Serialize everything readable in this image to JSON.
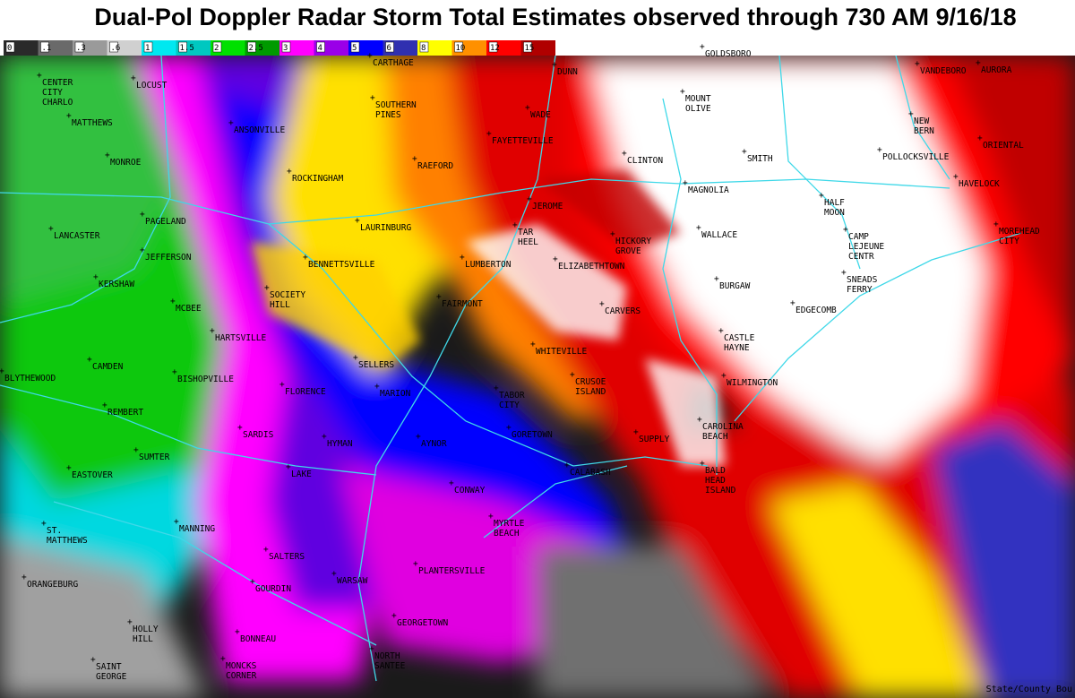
{
  "header": {
    "title": "Dual-Pol Doppler Radar Storm Total Estimates observed through 730 AM 9/16/18"
  },
  "legend": {
    "items": [
      {
        "label": "0",
        "color": "#2a2a2a"
      },
      {
        "label": ".1",
        "color": "#6a6a6a"
      },
      {
        "label": ".3",
        "color": "#9a9a9a"
      },
      {
        "label": ".6",
        "color": "#d0d0d0"
      },
      {
        "label": "1",
        "color": "#00e8f0"
      },
      {
        "label": "1.5",
        "color": "#00c8c0"
      },
      {
        "label": "2",
        "color": "#00e000"
      },
      {
        "label": "2.5",
        "color": "#009a00"
      },
      {
        "label": "3",
        "color": "#ff00ff"
      },
      {
        "label": "4",
        "color": "#9a00e8"
      },
      {
        "label": "5",
        "color": "#0000ff"
      },
      {
        "label": "6",
        "color": "#3030b0"
      },
      {
        "label": "8",
        "color": "#ffff00"
      },
      {
        "label": "10",
        "color": "#ff9000"
      },
      {
        "label": "12",
        "color": "#ff0000"
      },
      {
        "label": "15",
        "color": "#b00000"
      }
    ]
  },
  "places": [
    [
      "CARTHAGE"
    ],
    [
      "DUNN"
    ],
    [
      "GOLDSBORO"
    ],
    [
      "VANDEBORO"
    ],
    [
      "AURORA"
    ],
    [
      "CENTER",
      "CITY",
      "CHARLO"
    ],
    [
      "LOCUST"
    ],
    [
      "MOUNT",
      "OLIVE"
    ],
    [
      "SOUTHERN",
      "PINES"
    ],
    [
      "MATTHEWS"
    ],
    [
      "ANSONVILLE"
    ],
    [
      "WADE"
    ],
    [
      "NEW",
      "BERN"
    ],
    [
      "ROCKINGHAM"
    ],
    [
      "FAYETTEVILLE"
    ],
    [
      "ORIENTAL"
    ],
    [
      "MONROE"
    ],
    [
      "RAEFORD"
    ],
    [
      "CLINTON"
    ],
    [
      "SMITH"
    ],
    [
      "POLLOCKSVILLE"
    ],
    [
      "HAVELOCK"
    ],
    [
      "MAGNOLIA"
    ],
    [
      "HALF",
      "MOON"
    ],
    [
      "PAGELAND"
    ],
    [
      "LAURINBURG"
    ],
    [
      "JEROME"
    ],
    [
      "TAR",
      "HEEL"
    ],
    [
      "HICKORY",
      "GROVE"
    ],
    [
      "WALLACE"
    ],
    [
      "CAMP",
      "LEJEUNE",
      "CENTR"
    ],
    [
      "MOREHEAD",
      "CITY"
    ],
    [
      "LANCASTER"
    ],
    [
      "JEFFERSON"
    ],
    [
      "BENNETTSVILLE"
    ],
    [
      "LUMBERTON"
    ],
    [
      "ELIZABETHTOWN"
    ],
    [
      "KERSHAW"
    ],
    [
      "SOCIETY",
      "HILL"
    ],
    [
      "SNEADS",
      "FERRY"
    ],
    [
      "BURGAW"
    ],
    [
      "MCBEE"
    ],
    [
      "FAIRMONT"
    ],
    [
      "CARVERS"
    ],
    [
      "EDGECOMB"
    ],
    [
      "HARTSVILLE"
    ],
    [
      "CASTLE",
      "HAYNE"
    ],
    [
      "WHITEVILLE"
    ],
    [
      "CAMDEN"
    ],
    [
      "SELLERS"
    ],
    [
      "BLYTHEWOOD"
    ],
    [
      "BISHOPVILLE"
    ],
    [
      "CRUSOE",
      "ISLAND"
    ],
    [
      "WILMINGTON"
    ],
    [
      "FLORENCE"
    ],
    [
      "MARION"
    ],
    [
      "TABOR",
      "CITY"
    ],
    [
      "REMBERT"
    ],
    [
      "CAROLINA",
      "BEACH"
    ],
    [
      "SARDIS"
    ],
    [
      "SUPPLY"
    ],
    [
      "GORETOWN"
    ],
    [
      "AYNOR"
    ],
    [
      "HYMAN"
    ],
    [
      "SUMTER"
    ],
    [
      "LAKE"
    ],
    [
      "BALD",
      "HEAD",
      "ISLAND"
    ],
    [
      "CALABASH"
    ],
    [
      "EASTOVER"
    ],
    [
      "CONWAY"
    ],
    [
      "MANNING"
    ],
    [
      "MYRTLE",
      "BEACH"
    ],
    [
      "ST.",
      "MATTHEWS"
    ],
    [
      "SALTERS"
    ],
    [
      "PLANTERSVILLE"
    ],
    [
      "ORANGEBURG"
    ],
    [
      "GOURDIN"
    ],
    [
      "WARSAW"
    ],
    [
      "GEORGETOWN"
    ],
    [
      "HOLLY",
      "HILL"
    ],
    [
      "BONNEAU"
    ],
    [
      "NORTH",
      "SANTEE"
    ],
    [
      "SAINT",
      "GEORGE"
    ],
    [
      "MONCKS",
      "CORNER"
    ]
  ],
  "credit": "State/County Bou"
}
